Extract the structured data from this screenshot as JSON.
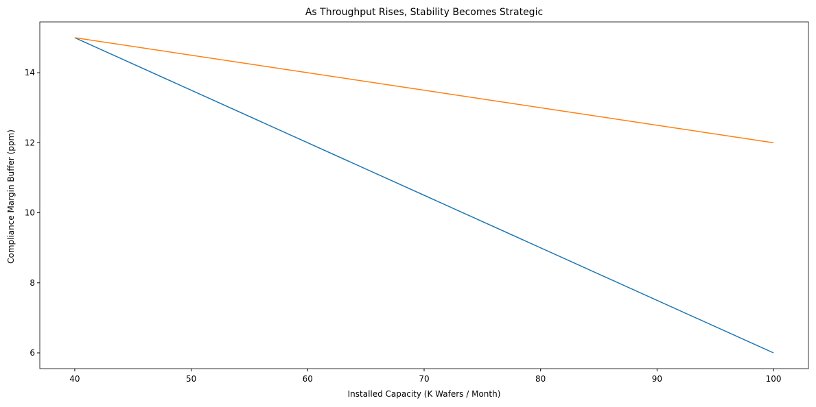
{
  "chart_data": {
    "type": "line",
    "title": "As Throughput Rises, Stability Becomes Strategic",
    "x_label": "Installed Capacity (K Wafers / Month)",
    "y_label": "Compliance Margin Buffer (ppm)",
    "x": [
      40,
      100
    ],
    "series": [
      {
        "color": "#1f77b4",
        "values": [
          15,
          6
        ]
      },
      {
        "color": "#ff7f0e",
        "values": [
          15,
          12
        ]
      }
    ],
    "xlim": [
      37,
      103
    ],
    "xticks": [
      40,
      50,
      60,
      70,
      80,
      90,
      100
    ],
    "ylim": [
      5.55,
      15.45
    ],
    "yticks": [
      6,
      8,
      10,
      12,
      14
    ]
  }
}
